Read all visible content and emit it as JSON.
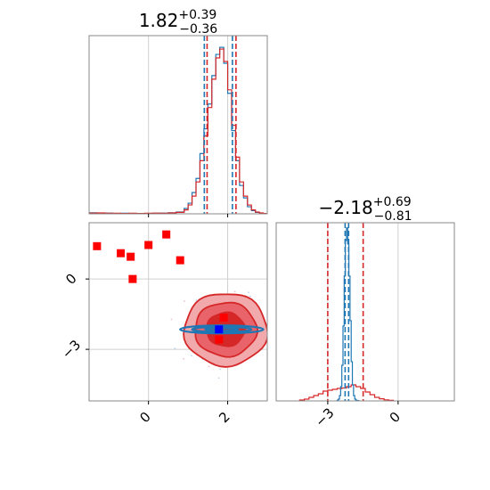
{
  "chart_data": [
    {
      "type": "histogram",
      "panel": "top-left",
      "title": {
        "main": "1.82",
        "sup": "+0.39",
        "sub": "−0.36"
      },
      "xlim": [
        -1.5,
        3.0
      ],
      "series": [
        {
          "name": "",
          "color": "#1f77b4",
          "bin_edges": [
            -1.5,
            -1.3,
            -1.1,
            -0.9,
            -0.7,
            -0.5,
            -0.3,
            -0.1,
            0.1,
            0.3,
            0.5,
            0.7,
            0.9,
            1.0,
            1.1,
            1.2,
            1.3,
            1.4,
            1.5,
            1.6,
            1.7,
            1.8,
            1.9,
            2.0,
            2.1,
            2.2,
            2.3,
            2.4,
            2.5,
            2.6,
            2.7,
            2.8,
            2.9,
            3.0
          ],
          "counts": [
            0.006,
            0.003,
            0.004,
            0.002,
            0.003,
            0.002,
            0.002,
            0.002,
            0.003,
            0.004,
            0.006,
            0.01,
            0.03,
            0.06,
            0.12,
            0.2,
            0.34,
            0.48,
            0.62,
            0.78,
            0.9,
            0.94,
            0.85,
            0.68,
            0.47,
            0.3,
            0.16,
            0.09,
            0.04,
            0.018,
            0.008,
            0.004,
            0.002
          ]
        },
        {
          "name": "",
          "color": "#d62728",
          "bin_edges": [
            -1.5,
            -1.3,
            -1.1,
            -0.9,
            -0.7,
            -0.5,
            -0.3,
            -0.1,
            0.1,
            0.3,
            0.5,
            0.7,
            0.9,
            1.0,
            1.1,
            1.2,
            1.3,
            1.4,
            1.5,
            1.6,
            1.7,
            1.8,
            1.9,
            2.0,
            2.1,
            2.2,
            2.3,
            2.4,
            2.5,
            2.6,
            2.7,
            2.8,
            2.9,
            3.0
          ],
          "counts": [
            0.004,
            0.005,
            0.003,
            0.003,
            0.002,
            0.003,
            0.002,
            0.003,
            0.004,
            0.003,
            0.005,
            0.008,
            0.022,
            0.05,
            0.1,
            0.18,
            0.3,
            0.44,
            0.6,
            0.76,
            0.88,
            0.93,
            0.86,
            0.7,
            0.5,
            0.32,
            0.18,
            0.1,
            0.05,
            0.022,
            0.01,
            0.005,
            0.002
          ]
        }
      ],
      "quantile_lines": [
        {
          "color": "#1f77b4",
          "x": [
            1.41,
            2.12
          ]
        },
        {
          "color": "#d62728",
          "x": [
            1.48,
            2.21
          ]
        }
      ]
    },
    {
      "type": "scatter",
      "panel": "bottom-left",
      "xlim": [
        -1.5,
        3.0
      ],
      "ylim": [
        -5.2,
        2.4
      ],
      "xticks": [
        0,
        2
      ],
      "yticks": [
        0,
        -3
      ],
      "xticklabels": [
        "0",
        "2"
      ],
      "yticklabels": [
        "0",
        "−3"
      ],
      "contours_red": {
        "color": "#d62728",
        "center": [
          1.95,
          -2.15
        ],
        "levels": [
          {
            "rx": 1.05,
            "ry": 1.55,
            "fill": "#f1a9ab"
          },
          {
            "rx": 0.78,
            "ry": 1.15,
            "fill": "#e8646a"
          },
          {
            "rx": 0.48,
            "ry": 0.72,
            "fill": "#d62728"
          }
        ]
      },
      "contours_blue": {
        "color": "#1f77b4",
        "center": [
          1.85,
          -2.15
        ],
        "levels": [
          {
            "rx": 1.05,
            "ry": 0.17
          },
          {
            "rx": 0.75,
            "ry": 0.11
          },
          {
            "rx": 0.42,
            "ry": 0.06
          }
        ]
      },
      "red_points": [
        [
          -1.3,
          1.4
        ],
        [
          -0.7,
          1.1
        ],
        [
          -0.45,
          0.95
        ],
        [
          -0.4,
          0.0
        ],
        [
          0.0,
          1.45
        ],
        [
          0.45,
          1.9
        ],
        [
          0.8,
          0.8
        ],
        [
          1.9,
          -1.65
        ],
        [
          1.78,
          -2.58
        ]
      ],
      "blue_point": [
        1.78,
        -2.15
      ],
      "scatter_cloud": {
        "center": [
          1.9,
          -2.15
        ],
        "spread": [
          0.65,
          1.0
        ]
      }
    },
    {
      "type": "histogram",
      "panel": "bottom-right",
      "title": {
        "main": "−2.18",
        "sup": "+0.69",
        "sub": "−0.81"
      },
      "xlim": [
        -5.2,
        2.4
      ],
      "xticks": [
        -3,
        0
      ],
      "xticklabels": [
        "−3",
        "0"
      ],
      "series": [
        {
          "name": "",
          "color": "#d62728",
          "bin_edges": [
            -4.2,
            -4.0,
            -3.8,
            -3.6,
            -3.4,
            -3.2,
            -3.0,
            -2.8,
            -2.6,
            -2.4,
            -2.2,
            -2.0,
            -1.8,
            -1.6,
            -1.4,
            -1.2,
            -1.0,
            -0.8,
            -0.6,
            -0.4,
            -0.2
          ],
          "counts": [
            0.005,
            0.01,
            0.02,
            0.03,
            0.04,
            0.055,
            0.06,
            0.065,
            0.07,
            0.072,
            0.08,
            0.09,
            0.08,
            0.07,
            0.05,
            0.035,
            0.02,
            0.012,
            0.006,
            0.003
          ]
        },
        {
          "name": "",
          "color": "#1f77b4",
          "bin_edges": [
            -2.6,
            -2.55,
            -2.5,
            -2.45,
            -2.4,
            -2.35,
            -2.3,
            -2.25,
            -2.2,
            -2.15,
            -2.1,
            -2.05,
            -2.0,
            -1.95,
            -1.9,
            -1.85,
            -1.8,
            -1.75,
            -1.7,
            -1.65
          ],
          "counts": [
            0.004,
            0.01,
            0.03,
            0.08,
            0.2,
            0.42,
            0.7,
            0.9,
            0.97,
            0.88,
            0.7,
            0.45,
            0.22,
            0.09,
            0.03,
            0.01,
            0.004,
            0.002,
            0.001
          ]
        }
      ],
      "quantile_lines": [
        {
          "color": "#d62728",
          "x": [
            -3.0,
            -1.49
          ]
        },
        {
          "color": "#1f77b4",
          "x": [
            -2.26,
            -2.11
          ]
        }
      ]
    }
  ]
}
